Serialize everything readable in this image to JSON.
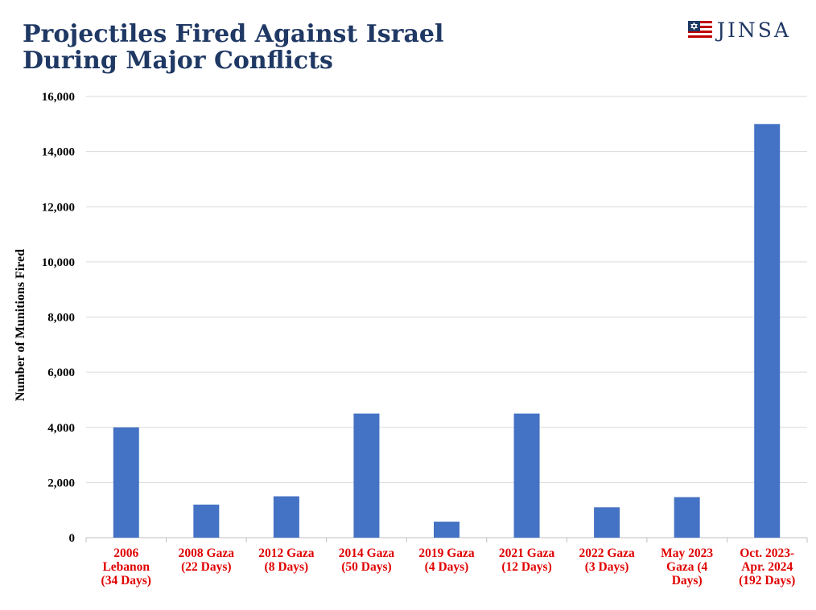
{
  "title_lines": [
    "Projectiles Fired Against Israel",
    "During Major Conflicts"
  ],
  "logo": {
    "text": "JINSA",
    "icon": "flag-star-of-david-icon"
  },
  "colors": {
    "bar": "#4472c4",
    "title": "#1f3864",
    "category_label": "#e00000",
    "grid": "#d9d9d9"
  },
  "chart_data": {
    "type": "bar",
    "title": "Projectiles Fired Against Israel During Major Conflicts",
    "xlabel": "",
    "ylabel": "Number of Munitions Fired",
    "ylim": [
      0,
      16000
    ],
    "yticks": [
      0,
      2000,
      4000,
      6000,
      8000,
      10000,
      12000,
      14000,
      16000
    ],
    "ytick_labels": [
      "0",
      "2,000",
      "4,000",
      "6,000",
      "8,000",
      "10,000",
      "12,000",
      "14,000",
      "16,000"
    ],
    "grid": true,
    "categories": [
      [
        "2006",
        "Lebanon",
        "(34 Days)"
      ],
      [
        "2008 Gaza",
        "(22 Days)"
      ],
      [
        "2012 Gaza",
        "(8 Days)"
      ],
      [
        "2014 Gaza",
        "(50 Days)"
      ],
      [
        "2019 Gaza",
        "(4 Days)"
      ],
      [
        "2021 Gaza",
        "(12 Days)"
      ],
      [
        "2022 Gaza",
        "(3 Days)"
      ],
      [
        "May 2023",
        "Gaza (4",
        "Days)"
      ],
      [
        "Oct. 2023-",
        "Apr. 2024",
        "(192 Days)"
      ]
    ],
    "values": [
      4000,
      1200,
      1500,
      4500,
      580,
      4500,
      1100,
      1470,
      15000
    ]
  }
}
